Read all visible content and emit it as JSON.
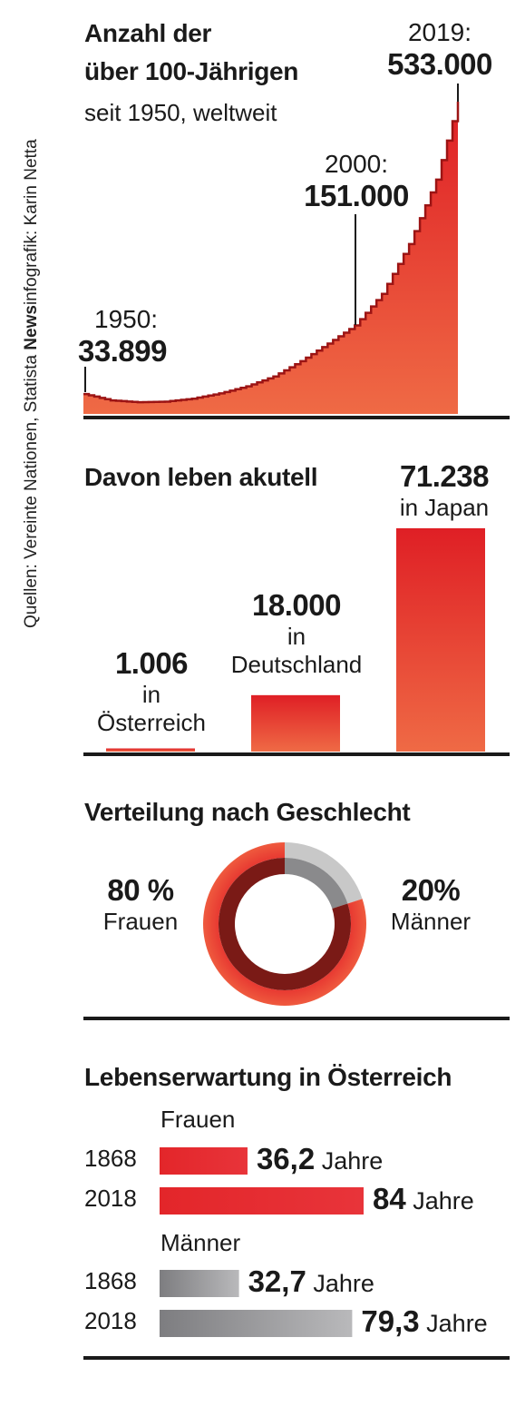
{
  "source_line": {
    "prefix": "Quellen: Vereinte Nationen, Statista",
    "brand": "News",
    "suffix": "infografik: Karin Netta"
  },
  "section1": {
    "title_line1": "Anzahl der",
    "title_line2": "über 100-Jährigen",
    "subtitle": "seit 1950, weltweit",
    "annotations": [
      {
        "year": "1950:",
        "value": "33.899"
      },
      {
        "year": "2000:",
        "value": "151.000"
      },
      {
        "year": "2019:",
        "value": "533.000"
      }
    ]
  },
  "section2": {
    "title": "Davon leben akutell",
    "bars": [
      {
        "value": "1.006",
        "line1": "in",
        "line2": "Österreich"
      },
      {
        "value": "18.000",
        "line1": "in",
        "line2": "Deutschland"
      },
      {
        "value": "71.238",
        "line1": "in Japan",
        "line2": ""
      }
    ]
  },
  "section3": {
    "title": "Verteilung nach Geschlecht",
    "left_value": "80 %",
    "left_label": "Frauen",
    "right_value": "20%",
    "right_label": "Männer"
  },
  "section4": {
    "title": "Lebenserwartung in Österreich",
    "groups": [
      {
        "label": "Frauen",
        "rows": [
          {
            "year": "1868",
            "value": "36,2",
            "unit": "Jahre"
          },
          {
            "year": "2018",
            "value": "84",
            "unit": "Jahre"
          }
        ]
      },
      {
        "label": "Männer",
        "rows": [
          {
            "year": "1868",
            "value": "32,7",
            "unit": "Jahre"
          },
          {
            "year": "2018",
            "value": "79,3",
            "unit": "Jahre"
          }
        ]
      }
    ]
  },
  "colors": {
    "red": "#e3262a",
    "red_light": "#ef6a45",
    "dark_red": "#7a1a16",
    "grey": "#8a8a8c",
    "grey_light": "#c8c8c8"
  },
  "chart_data": [
    {
      "type": "area",
      "title": "Anzahl der über 100-Jährigen",
      "subtitle": "seit 1950, weltweit",
      "x": [
        1950,
        1955,
        1960,
        1965,
        1970,
        1975,
        1980,
        1985,
        1990,
        1995,
        2000,
        2005,
        2010,
        2015,
        2019
      ],
      "values": [
        33899,
        23000,
        20000,
        21000,
        26000,
        35000,
        47000,
        64000,
        90000,
        120000,
        151000,
        205000,
        290000,
        400000,
        533000
      ],
      "xlim": [
        1950,
        2019
      ],
      "ylim": [
        0,
        533000
      ],
      "labeled_points": [
        {
          "x": 1950,
          "y": 33899
        },
        {
          "x": 2000,
          "y": 151000
        },
        {
          "x": 2019,
          "y": 533000
        }
      ]
    },
    {
      "type": "bar",
      "title": "Davon leben akutell",
      "categories": [
        "Österreich",
        "Deutschland",
        "Japan"
      ],
      "values": [
        1006,
        18000,
        71238
      ]
    },
    {
      "type": "pie",
      "title": "Verteilung nach Geschlecht",
      "categories": [
        "Frauen",
        "Männer"
      ],
      "values": [
        80,
        20
      ]
    },
    {
      "type": "bar",
      "title": "Lebenserwartung in Österreich",
      "categories": [
        "1868",
        "2018"
      ],
      "series": [
        {
          "name": "Frauen",
          "values": [
            36.2,
            84
          ]
        },
        {
          "name": "Männer",
          "values": [
            32.7,
            79.3
          ]
        }
      ],
      "xlim": [
        0,
        84
      ]
    }
  ]
}
